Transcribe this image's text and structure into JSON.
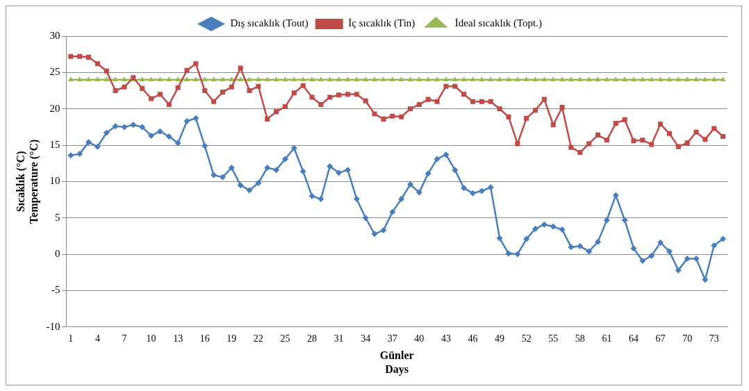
{
  "chart_data": {
    "type": "line",
    "xlabel": "Günler\nDays",
    "ylabel": "Sıcaklık (°C)\nTemperature (°C)",
    "categories": [
      "1",
      null,
      null,
      "4",
      null,
      null,
      "7",
      null,
      null,
      "10",
      null,
      null,
      "13",
      null,
      null,
      "16",
      null,
      null,
      "19",
      null,
      null,
      "22",
      null,
      null,
      "25",
      null,
      null,
      "28",
      null,
      null,
      "31",
      null,
      null,
      "34",
      null,
      null,
      "37",
      null,
      null,
      "40",
      null,
      null,
      "43",
      null,
      null,
      "46",
      null,
      null,
      "49",
      null,
      null,
      "52",
      null,
      null,
      "55",
      null,
      null,
      "58",
      null,
      null,
      "61",
      null,
      null,
      "64",
      null,
      null,
      "67",
      null,
      null,
      "70",
      null,
      null,
      "73",
      null
    ],
    "series": [
      {
        "name": "Dış sıcaklık (Tout)",
        "color": "#4a7ebb",
        "marker": "diamond",
        "values": [
          13.6,
          13.8,
          15.4,
          14.8,
          16.7,
          17.6,
          17.5,
          17.8,
          17.5,
          16.3,
          16.9,
          16.2,
          15.3,
          18.3,
          18.7,
          14.9,
          10.9,
          10.6,
          11.9,
          9.5,
          8.8,
          9.8,
          11.9,
          11.6,
          13.1,
          14.6,
          11.4,
          8.0,
          7.6,
          12.1,
          11.2,
          11.6,
          7.6,
          5.0,
          2.8,
          3.3,
          5.8,
          7.6,
          9.6,
          8.5,
          11.1,
          13.1,
          13.7,
          11.6,
          9.1,
          8.4,
          8.7,
          9.2,
          2.2,
          0.1,
          0.0,
          2.1,
          3.5,
          4.1,
          3.8,
          3.4,
          1.0,
          1.1,
          0.4,
          1.7,
          4.7,
          8.1,
          4.7,
          0.8,
          -0.9,
          -0.2,
          1.6,
          0.4,
          -2.2,
          -0.6,
          -0.6,
          -3.5,
          1.2,
          2.1
        ]
      },
      {
        "name": "İç sıcaklık (Tin)",
        "color": "#be4b48",
        "marker": "square",
        "values": [
          27.2,
          27.2,
          27.1,
          26.2,
          25.2,
          22.5,
          23.0,
          24.3,
          22.8,
          21.4,
          22.0,
          20.6,
          22.9,
          25.3,
          26.2,
          22.5,
          21.0,
          22.3,
          23.0,
          25.6,
          22.5,
          23.1,
          18.6,
          19.6,
          20.3,
          22.2,
          23.2,
          21.6,
          20.6,
          21.6,
          21.9,
          22.0,
          22.0,
          21.1,
          19.3,
          18.6,
          19.0,
          18.9,
          20.0,
          20.6,
          21.3,
          21.0,
          23.1,
          23.1,
          22.0,
          21.0,
          21.0,
          21.0,
          20.0,
          18.9,
          15.2,
          18.7,
          19.8,
          21.3,
          17.8,
          20.2,
          14.7,
          14.0,
          15.2,
          16.4,
          15.7,
          18.0,
          18.5,
          15.6,
          15.7,
          15.1,
          17.9,
          16.6,
          14.8,
          15.3,
          16.8,
          15.8,
          17.3,
          16.2
        ]
      },
      {
        "name": "İdeal sıcaklık (Topt.)",
        "color": "#98b954",
        "marker": "triangle",
        "values": [
          24,
          24,
          24,
          24,
          24,
          24,
          24,
          24,
          24,
          24,
          24,
          24,
          24,
          24,
          24,
          24,
          24,
          24,
          24,
          24,
          24,
          24,
          24,
          24,
          24,
          24,
          24,
          24,
          24,
          24,
          24,
          24,
          24,
          24,
          24,
          24,
          24,
          24,
          24,
          24,
          24,
          24,
          24,
          24,
          24,
          24,
          24,
          24,
          24,
          24,
          24,
          24,
          24,
          24,
          24,
          24,
          24,
          24,
          24,
          24,
          24,
          24,
          24,
          24,
          24,
          24,
          24,
          24,
          24,
          24,
          24,
          24,
          24,
          24
        ]
      }
    ],
    "ylim": [
      -10,
      30
    ],
    "yticks": [
      -10,
      -5,
      0,
      5,
      10,
      15,
      20,
      25,
      30
    ],
    "grid": "y",
    "legend": "top",
    "line_style": "solid"
  }
}
